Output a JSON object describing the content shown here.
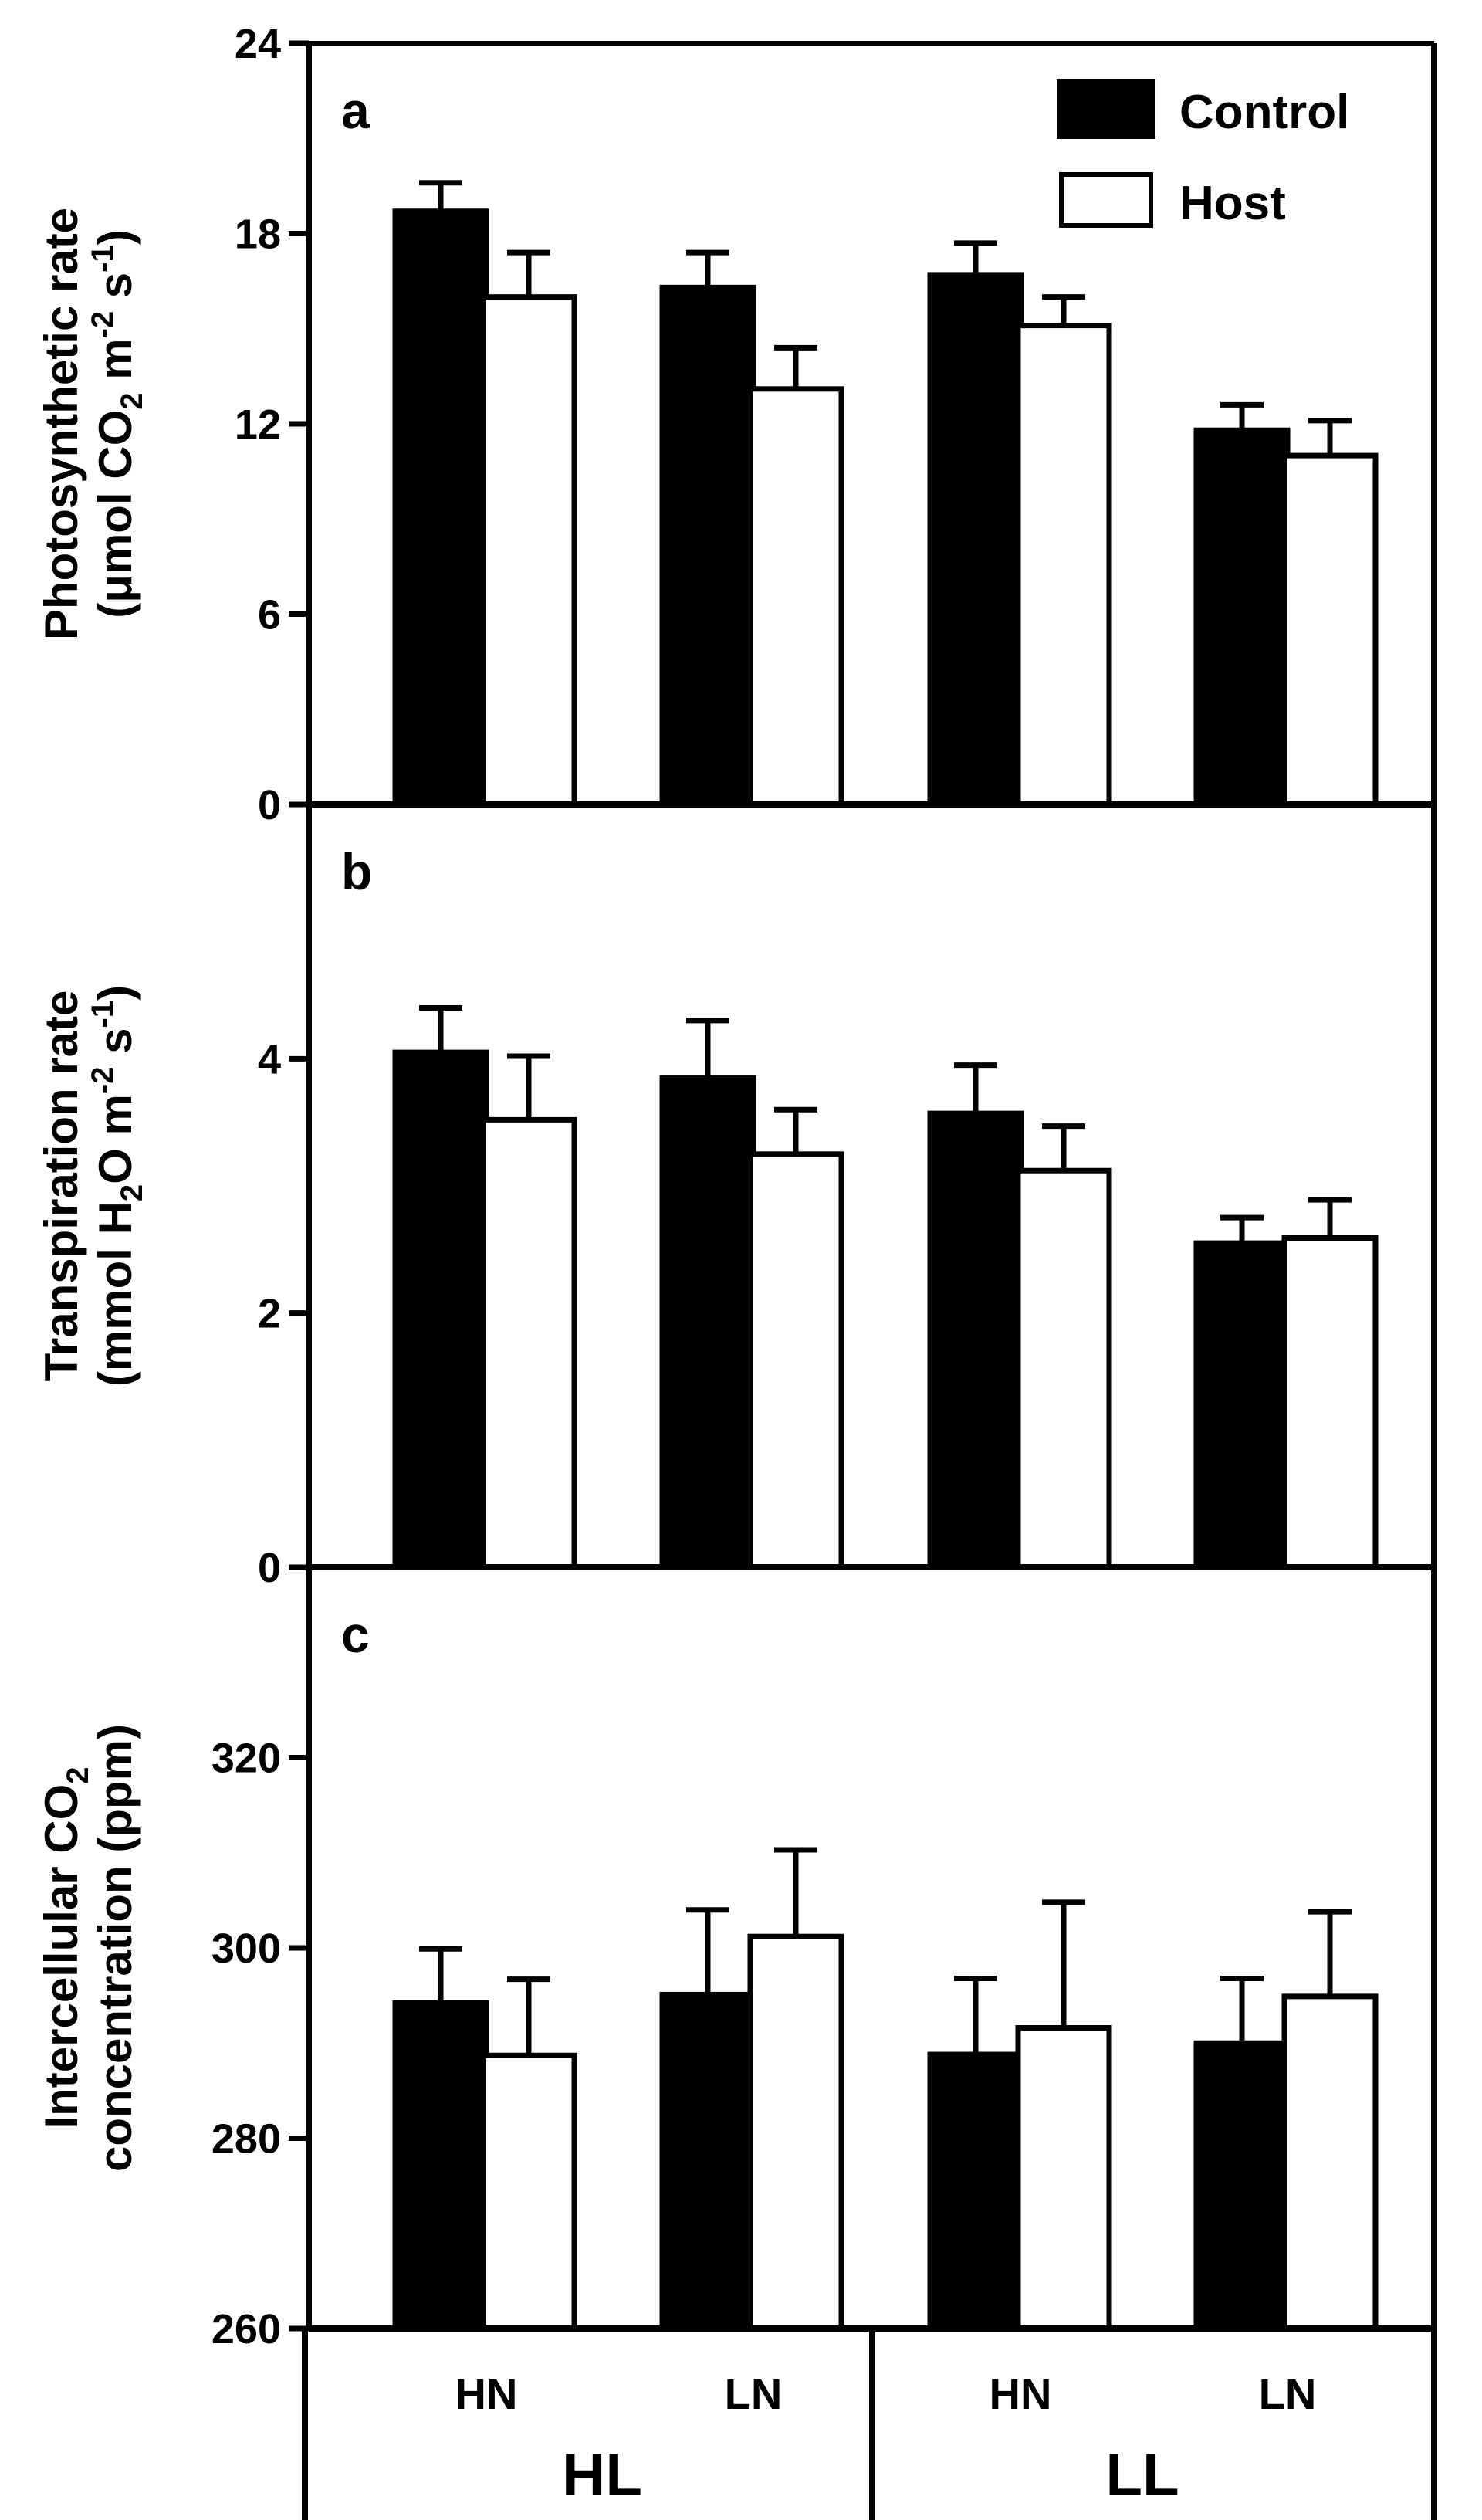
{
  "chart_data": [
    {
      "type": "bar",
      "panel": "a",
      "ylabel_line1": "Photosynthetic rate",
      "ylabel_line2_parts": [
        "(μmol CO",
        "2",
        " m",
        "-2",
        " s",
        "-1",
        ")"
      ],
      "ylim": [
        0,
        24
      ],
      "yticks": [
        "0",
        "6",
        "12",
        "18",
        "24"
      ],
      "categories": [
        "HN",
        "LN",
        "HN",
        "LN"
      ],
      "series": [
        {
          "name": "Control",
          "values": [
            18.7,
            16.3,
            16.7,
            11.8
          ],
          "errors": [
            0.9,
            1.1,
            1.0,
            0.8
          ]
        },
        {
          "name": "Host",
          "values": [
            16.0,
            13.1,
            15.1,
            11.0
          ],
          "errors": [
            1.4,
            1.3,
            0.9,
            1.1
          ]
        }
      ]
    },
    {
      "type": "bar",
      "panel": "b",
      "ylabel_line1": "Transpiration rate",
      "ylabel_line2_parts": [
        "(mmol H",
        "2",
        "O m",
        "-2",
        " s",
        "-1",
        ")"
      ],
      "ylim": [
        0,
        6
      ],
      "yticks": [
        "0",
        "2",
        "4"
      ],
      "categories": [
        "HN",
        "LN",
        "HN",
        "LN"
      ],
      "series": [
        {
          "name": "Control",
          "values": [
            4.05,
            3.85,
            3.57,
            2.55
          ],
          "errors": [
            0.35,
            0.45,
            0.38,
            0.2
          ]
        },
        {
          "name": "Host",
          "values": [
            3.52,
            3.25,
            3.12,
            2.59
          ],
          "errors": [
            0.5,
            0.35,
            0.35,
            0.3
          ]
        }
      ]
    },
    {
      "type": "bar",
      "panel": "c",
      "ylabel_line1_parts": [
        "Intercellular CO",
        "2"
      ],
      "ylabel_line2": "concentration (ppm)",
      "ylim": [
        260,
        340
      ],
      "yticks": [
        "260",
        "280",
        "300",
        "320"
      ],
      "categories": [
        "HN",
        "LN",
        "HN",
        "LN"
      ],
      "series": [
        {
          "name": "Control",
          "values": [
            294.2,
            295.1,
            288.8,
            290.0
          ],
          "errors": [
            5.7,
            8.9,
            8.0,
            6.8
          ]
        },
        {
          "name": "Host",
          "values": [
            288.7,
            301.2,
            291.6,
            294.9
          ],
          "errors": [
            8.0,
            9.1,
            13.2,
            8.9
          ]
        }
      ]
    }
  ],
  "legend": {
    "control_label": "Control",
    "host_label": "Host"
  },
  "x_groups": {
    "group_1": "HL",
    "group_2": "LL",
    "sub_labels": [
      "HN",
      "LN",
      "HN",
      "LN"
    ]
  },
  "colors": {
    "control": "#000000",
    "host": "#ffffff",
    "axis": "#000000"
  }
}
